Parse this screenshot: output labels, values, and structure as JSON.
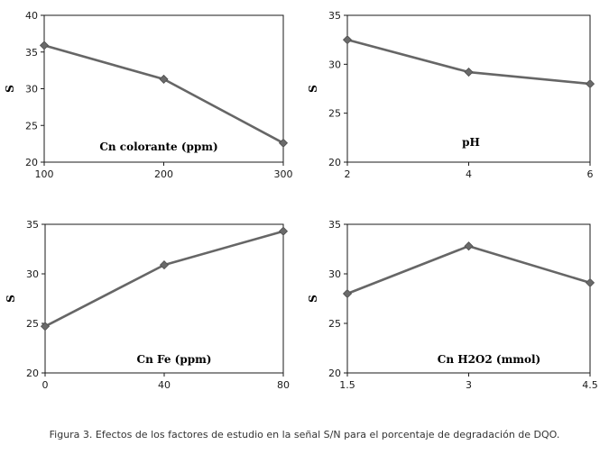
{
  "chart_data": [
    {
      "type": "line",
      "x": [
        100,
        200,
        300
      ],
      "values": [
        35.9,
        31.3,
        22.6
      ],
      "xlim": [
        100,
        300
      ],
      "ylim": [
        20,
        40
      ],
      "xticks": [
        "100",
        "200",
        "300"
      ],
      "yticks": [
        "20",
        "25",
        "30",
        "35",
        "40"
      ],
      "ylabel": "S",
      "annotation": "Cn colorante (ppm)",
      "color": "#666666",
      "marker": "diamond",
      "grid": false
    },
    {
      "type": "line",
      "x": [
        2,
        4,
        6
      ],
      "values": [
        32.5,
        29.2,
        28.0
      ],
      "xlim": [
        2,
        6
      ],
      "ylim": [
        20,
        35
      ],
      "xticks": [
        "2",
        "4",
        "6"
      ],
      "yticks": [
        "20",
        "25",
        "30",
        "35"
      ],
      "ylabel": "S",
      "annotation": "pH",
      "color": "#666666",
      "marker": "diamond",
      "grid": false
    },
    {
      "type": "line",
      "x": [
        0,
        40,
        80
      ],
      "values": [
        24.7,
        30.9,
        34.3
      ],
      "xlim": [
        0,
        80
      ],
      "ylim": [
        20,
        35
      ],
      "xticks": [
        "0",
        "40",
        "80"
      ],
      "yticks": [
        "20",
        "25",
        "30",
        "35"
      ],
      "ylabel": "S",
      "annotation": "Cn Fe (ppm)",
      "color": "#666666",
      "marker": "diamond",
      "grid": false
    },
    {
      "type": "line",
      "x": [
        1.5,
        3,
        4.5
      ],
      "values": [
        28.0,
        32.8,
        29.1
      ],
      "xlim": [
        1.5,
        4.5
      ],
      "ylim": [
        20,
        35
      ],
      "xticks": [
        "1.5",
        "3",
        "4.5"
      ],
      "yticks": [
        "20",
        "25",
        "30",
        "35"
      ],
      "ylabel": "S",
      "annotation": "Cn H2O2 (mmol)",
      "color": "#666666",
      "marker": "diamond",
      "grid": false
    }
  ],
  "caption": "Figura 3. Efectos de los factores de estudio en la señal S/N para el porcentaje de degradación de DQO."
}
